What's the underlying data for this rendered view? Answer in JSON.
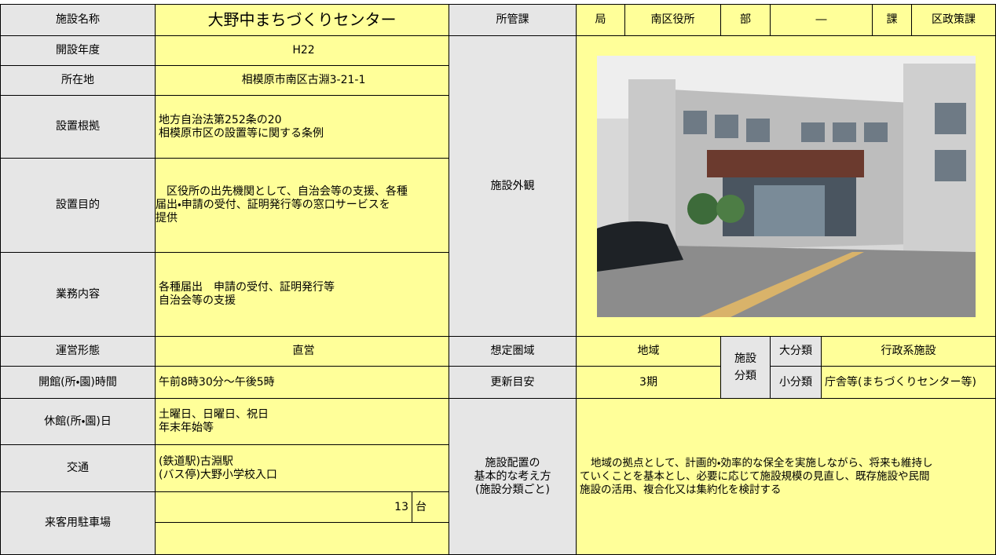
{
  "facility": {
    "label": "施設名称",
    "name": "大野中まちづくりセンター"
  },
  "basic": [
    {
      "label": "開設年度",
      "lines": [
        "H22"
      ]
    },
    {
      "label": "所在地",
      "lines": [
        "相模原市南区古淵3-21-1"
      ]
    },
    {
      "label": "設置根拠",
      "lines": [
        "地方自治法第252条の20",
        "相模原市区の設置等に関する条例"
      ]
    },
    {
      "label": "設置目的",
      "lines": [
        "区役所の出先機関として、自治会等の支援、各種",
        "届出・申請の受付、証明発行等の窓口サービスを",
        "提供"
      ]
    },
    {
      "label": "業務内容",
      "lines": [
        "各種届出　申請の受付、証明発行等",
        "自治会等の支援"
      ]
    },
    {
      "label": "運営形態",
      "lines": [
        "直営"
      ]
    },
    {
      "label": "開館(所・園)時間",
      "lines": [
        "午前8時30分～午後5時"
      ]
    },
    {
      "label": "休館(所・園)日",
      "lines": [
        "土曜日、日曜日、祝日",
        "年末年始等"
      ]
    },
    {
      "label": "交通",
      "lines": [
        "(鉄道駅)古淵駅",
        "(バス停)大野小学校入口"
      ]
    }
  ],
  "parking": {
    "label": "来客用駐車場",
    "count": 13,
    "unit": "台"
  },
  "department": {
    "label": "所管課",
    "bureau_label": "局",
    "bureau": "南区役所",
    "division_label": "部",
    "division": "―",
    "section_label": "課",
    "section": "区政策課"
  },
  "exterior_label": "施設外観",
  "service_area": {
    "label": "想定圏域",
    "value": "地域"
  },
  "renewal": {
    "label": "更新目安",
    "value": "3期"
  },
  "classification": {
    "label": [
      "施設",
      "分類"
    ],
    "major_label": "大分類",
    "major": "行政系施設",
    "minor_label": "小分類",
    "minor": "庁舎等(まちづくりセンター等)"
  },
  "policy": {
    "label": [
      "施設配置の",
      "基本的な考え方",
      "(施設分類ごと)"
    ],
    "lines": [
      "地域の拠点として、計画的・効率的な保全を実施しながら、将来も維持し",
      "ていくことを基本とし、必要に応じて施設規模の見直し、既存施設や民間",
      "施設の活用、複合化又は集約化を検討する"
    ]
  }
}
